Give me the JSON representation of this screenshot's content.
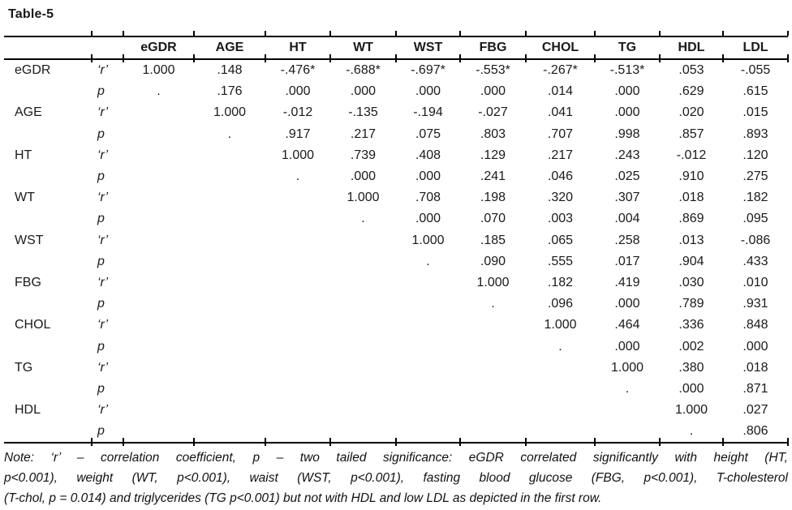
{
  "title": "Table-5",
  "colors": {
    "text": "#1a1a1a",
    "background": "#ffffff",
    "rule": "#000000"
  },
  "table": {
    "columns": [
      "eGDR",
      "AGE",
      "HT",
      "WT",
      "WST",
      "FBG",
      "CHOL",
      "TG",
      "HDL",
      "LDL"
    ],
    "r_label": "‘r’",
    "p_label": "p",
    "rows": [
      {
        "label": "eGDR",
        "r": [
          "1.000",
          ".148",
          "-.476*",
          "-.688*",
          "-.697*",
          "-.553*",
          "-.267*",
          "-.513*",
          ".053",
          "-.055"
        ],
        "p": [
          ".",
          ".176",
          ".000",
          ".000",
          ".000",
          ".000",
          ".014",
          ".000",
          ".629",
          ".615"
        ]
      },
      {
        "label": "AGE",
        "r": [
          "",
          "1.000",
          "-.012",
          "-.135",
          "-.194",
          "-.027",
          ".041",
          ".000",
          ".020",
          ".015"
        ],
        "p": [
          "",
          ".",
          ".917",
          ".217",
          ".075",
          ".803",
          ".707",
          ".998",
          ".857",
          ".893"
        ]
      },
      {
        "label": "HT",
        "r": [
          "",
          "",
          "1.000",
          ".739",
          ".408",
          ".129",
          ".217",
          ".243",
          "-.012",
          ".120"
        ],
        "p": [
          "",
          "",
          ".",
          ".000",
          ".000",
          ".241",
          ".046",
          ".025",
          ".910",
          ".275"
        ]
      },
      {
        "label": "WT",
        "r": [
          "",
          "",
          "",
          "1.000",
          ".708",
          ".198",
          ".320",
          ".307",
          ".018",
          ".182"
        ],
        "p": [
          "",
          "",
          "",
          ".",
          ".000",
          ".070",
          ".003",
          ".004",
          ".869",
          ".095"
        ]
      },
      {
        "label": "WST",
        "r": [
          "",
          "",
          "",
          "",
          "1.000",
          ".185",
          ".065",
          ".258",
          ".013",
          "-.086"
        ],
        "p": [
          "",
          "",
          "",
          "",
          ".",
          ".090",
          ".555",
          ".017",
          ".904",
          ".433"
        ]
      },
      {
        "label": "FBG",
        "r": [
          "",
          "",
          "",
          "",
          "",
          "1.000",
          ".182",
          ".419",
          ".030",
          ".010"
        ],
        "p": [
          "",
          "",
          "",
          "",
          "",
          ".",
          ".096",
          ".000",
          ".789",
          ".931"
        ]
      },
      {
        "label": "CHOL",
        "r": [
          "",
          "",
          "",
          "",
          "",
          "",
          "1.000",
          ".464",
          ".336",
          ".848"
        ],
        "p": [
          "",
          "",
          "",
          "",
          "",
          "",
          ".",
          ".000",
          ".002",
          ".000"
        ]
      },
      {
        "label": "TG",
        "r": [
          "",
          "",
          "",
          "",
          "",
          "",
          "",
          "1.000",
          ".380",
          ".018"
        ],
        "p": [
          "",
          "",
          "",
          "",
          "",
          "",
          "",
          ".",
          ".000",
          ".871"
        ]
      },
      {
        "label": "HDL",
        "r": [
          "",
          "",
          "",
          "",
          "",
          "",
          "",
          "",
          "1.000",
          ".027"
        ],
        "p": [
          "",
          "",
          "",
          "",
          "",
          "",
          "",
          "",
          ".",
          ".806"
        ]
      }
    ]
  },
  "note": {
    "lines": [
      "Note: ‘r’ – correlation coefficient, p – two tailed significance: eGDR correlated significantly with height (HT,",
      "p<0.001), weight (WT, p<0.001), waist (WST, p<0.001), fasting blood glucose (FBG, p<0.001), T-cholesterol",
      "(T-chol, p = 0.014) and triglycerides (TG p<0.001) but not with HDL and low LDL as depicted in the first row."
    ]
  }
}
